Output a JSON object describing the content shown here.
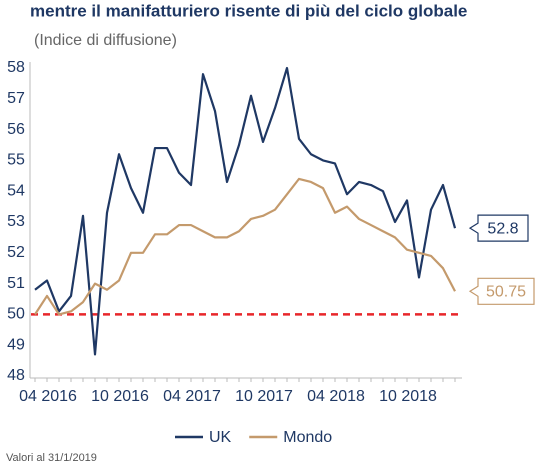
{
  "chart_data": {
    "type": "line",
    "title": "mentre il manifatturiero risente di più del ciclo globale",
    "subtitle": "(Indice di diffusione)",
    "note": "Valori al 31/1/2019",
    "categories": [
      null,
      "04 2016",
      null,
      null,
      null,
      null,
      null,
      "10 2016",
      null,
      null,
      null,
      null,
      null,
      "04 2017",
      null,
      null,
      null,
      null,
      null,
      "10 2017",
      null,
      null,
      null,
      null,
      null,
      "04 2018",
      null,
      null,
      null,
      null,
      null,
      "10 2018",
      null,
      null,
      null,
      null
    ],
    "series": [
      {
        "name": "UK",
        "color": "#1f3864",
        "values": [
          50.8,
          51.1,
          50.1,
          50.6,
          53.2,
          48.7,
          53.3,
          55.2,
          54.1,
          53.3,
          55.4,
          55.4,
          54.6,
          54.2,
          57.8,
          56.6,
          54.3,
          55.5,
          57.1,
          55.6,
          56.7,
          58.0,
          55.7,
          55.2,
          55.0,
          54.9,
          53.9,
          54.3,
          54.2,
          54.0,
          53.0,
          53.7,
          51.2,
          53.4,
          54.2,
          52.8
        ],
        "value_labels": [
          null,
          null,
          null,
          null,
          null,
          null,
          null,
          null,
          null,
          null,
          null,
          null,
          null,
          null,
          null,
          null,
          null,
          null,
          null,
          null,
          null,
          null,
          null,
          null,
          null,
          null,
          null,
          null,
          null,
          null,
          null,
          null,
          null,
          null,
          null,
          "52.8"
        ]
      },
      {
        "name": "Mondo",
        "color": "#c49a6c",
        "values": [
          50.0,
          50.6,
          50.0,
          50.1,
          50.4,
          51.0,
          50.8,
          51.1,
          52.0,
          52.0,
          52.6,
          52.6,
          52.9,
          52.9,
          52.7,
          52.5,
          52.5,
          52.7,
          53.1,
          53.2,
          53.4,
          53.9,
          54.4,
          54.3,
          54.1,
          53.3,
          53.5,
          53.1,
          52.9,
          52.7,
          52.5,
          52.1,
          52.0,
          51.9,
          51.5,
          50.75
        ],
        "value_labels": [
          null,
          null,
          null,
          null,
          null,
          null,
          null,
          null,
          null,
          null,
          null,
          null,
          null,
          null,
          null,
          null,
          null,
          null,
          null,
          null,
          null,
          null,
          null,
          null,
          null,
          null,
          null,
          null,
          null,
          null,
          null,
          null,
          null,
          null,
          null,
          "50.75"
        ]
      }
    ],
    "reference_line": {
      "value": 50,
      "color": "#e8262a"
    },
    "ylim": [
      48,
      58
    ],
    "yticks": [
      48,
      49,
      50,
      51,
      52,
      53,
      54,
      55,
      56,
      57,
      58
    ],
    "grid": false,
    "legend": "bottom"
  }
}
